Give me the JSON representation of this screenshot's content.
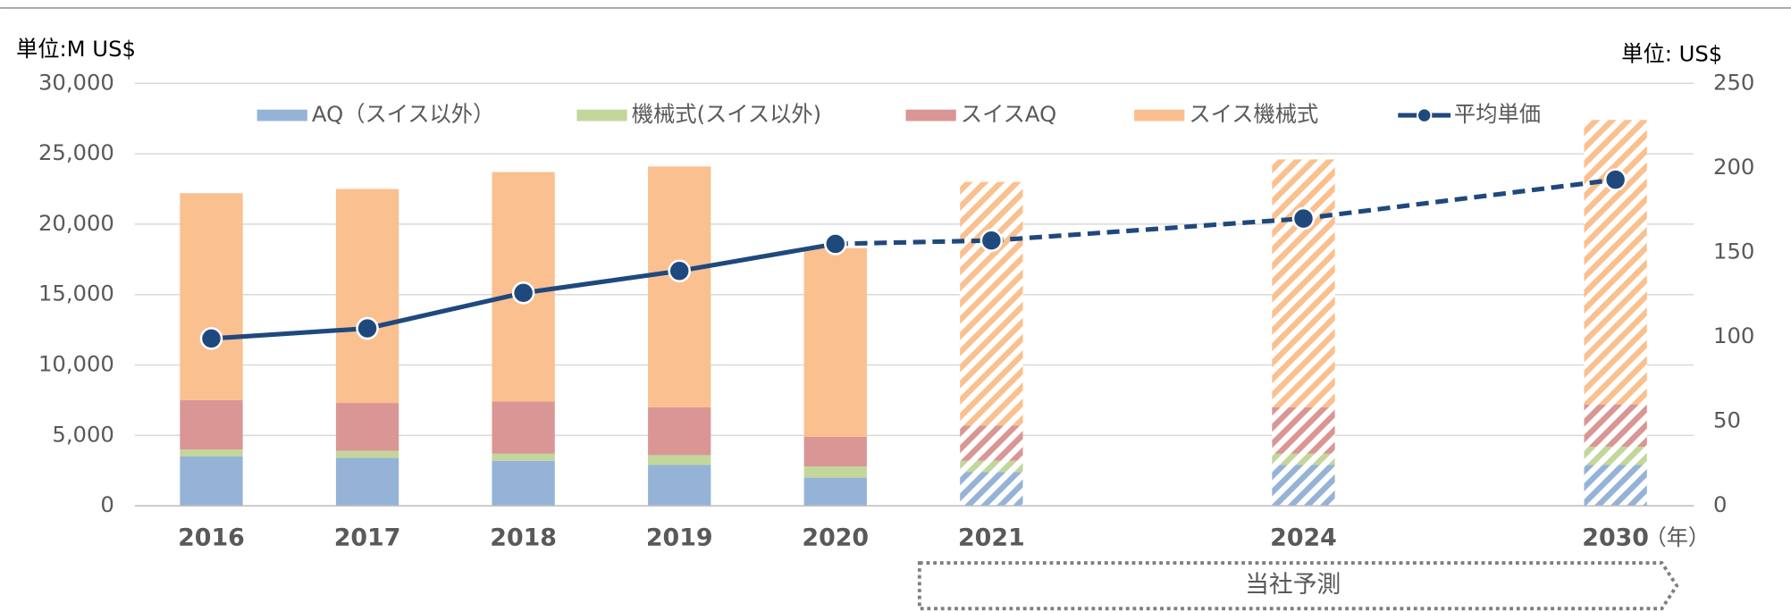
{
  "chart_data": {
    "type": "bar",
    "stacked": true,
    "y_label": "単位:M US$",
    "y2_label": "単位: US$",
    "x_label": "（年）",
    "categories": [
      "2016",
      "2017",
      "2018",
      "2019",
      "2020",
      "2021",
      "2024",
      "2030"
    ],
    "series": [
      {
        "name": "AQ（スイス以外）",
        "color": "#95b3d7",
        "values": [
          3500,
          3400,
          3200,
          2900,
          2000,
          2400,
          2900,
          2900
        ]
      },
      {
        "name": "機械式(スイス以外)",
        "color": "#c3d69b",
        "values": [
          500,
          500,
          500,
          700,
          800,
          800,
          800,
          1300
        ]
      },
      {
        "name": "スイスAQ",
        "color": "#d99694",
        "values": [
          3500,
          3400,
          3700,
          3400,
          2100,
          2500,
          3300,
          3000
        ]
      },
      {
        "name": "スイス機械式",
        "color": "#fac090",
        "values": [
          14700,
          15200,
          16300,
          17100,
          13400,
          17300,
          17600,
          20200
        ]
      },
      {
        "name": "平均単価",
        "type": "line",
        "axis": "y2",
        "color": "#1f497d",
        "values": [
          99,
          105,
          126,
          139,
          155,
          157,
          170,
          193
        ]
      }
    ],
    "ylim": [
      0,
      30000
    ],
    "yticks": [
      0,
      {
        "value": 5000,
        "label": "5,000"
      },
      {
        "value": 10000,
        "label": "10,000"
      },
      {
        "value": 15000,
        "label": "15,000"
      },
      {
        "value": 20000,
        "label": "20,000"
      },
      {
        "value": 25000,
        "label": "25,000"
      },
      {
        "value": 30000,
        "label": "30,000"
      }
    ],
    "y2lim": [
      0,
      250
    ],
    "y2ticks": [
      0,
      50,
      100,
      150,
      200,
      250
    ],
    "grid": true,
    "legend": "top",
    "annotation": {
      "text": "当社予測",
      "from": "2021",
      "to": "2030"
    }
  }
}
